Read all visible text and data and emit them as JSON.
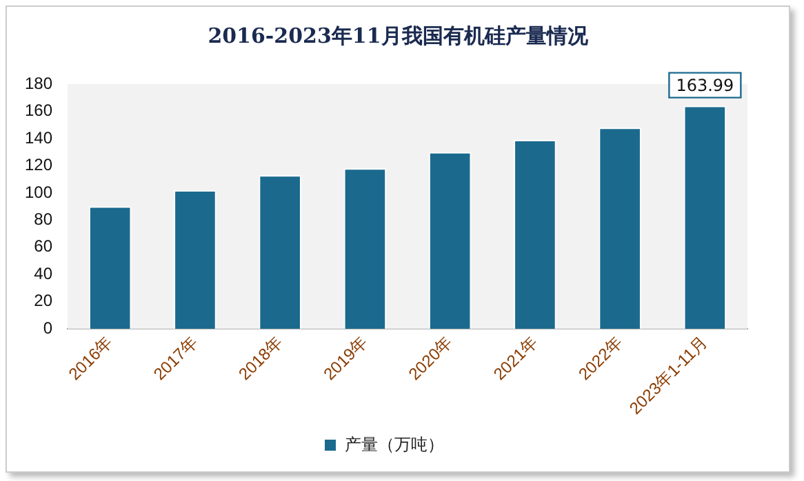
{
  "chart_data": {
    "type": "bar",
    "title": "2016-2023年11月我国有机硅产量情况",
    "categories": [
      "2016年",
      "2017年",
      "2018年",
      "2019年",
      "2020年",
      "2021年",
      "2022年",
      "2023年1-11月"
    ],
    "series": [
      {
        "name": "产量（万吨）",
        "color": "#1b6a8e",
        "values": [
          90,
          102,
          113,
          118,
          130,
          139,
          148,
          163.99
        ],
        "value_labels": [
          null,
          null,
          null,
          null,
          null,
          null,
          null,
          "163.99"
        ]
      }
    ],
    "ylim": [
      0,
      180
    ],
    "yticks": [
      0,
      20,
      40,
      60,
      80,
      100,
      120,
      140,
      160,
      180
    ],
    "grid": false,
    "legend": "bottom"
  }
}
